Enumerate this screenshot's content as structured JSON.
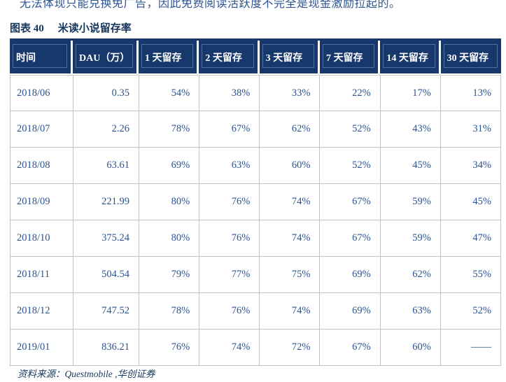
{
  "intro_text": "无法体现只能兑换免广告，因此免费阅读活跃度不完全是现金激励拉起的。",
  "figure": {
    "label": "图表 40",
    "title": "米读小说留存率"
  },
  "table": {
    "headers": [
      "时间",
      "DAU（万）",
      "1 天留存",
      "2 天留存",
      "3 天留存",
      "7 天留存",
      "14 天留存",
      "30 天留存"
    ],
    "rows": [
      [
        "2018/06",
        "0.35",
        "54%",
        "38%",
        "33%",
        "22%",
        "17%",
        "13%"
      ],
      [
        "2018/07",
        "2.26",
        "78%",
        "67%",
        "62%",
        "52%",
        "43%",
        "31%"
      ],
      [
        "2018/08",
        "63.61",
        "69%",
        "63%",
        "60%",
        "52%",
        "45%",
        "34%"
      ],
      [
        "2018/09",
        "221.99",
        "80%",
        "76%",
        "74%",
        "67%",
        "59%",
        "45%"
      ],
      [
        "2018/10",
        "375.24",
        "80%",
        "76%",
        "74%",
        "67%",
        "59%",
        "47%"
      ],
      [
        "2018/11",
        "504.54",
        "79%",
        "77%",
        "75%",
        "69%",
        "62%",
        "55%"
      ],
      [
        "2018/12",
        "747.52",
        "78%",
        "76%",
        "74%",
        "69%",
        "63%",
        "52%"
      ],
      [
        "2019/01",
        "836.21",
        "76%",
        "74%",
        "72%",
        "67%",
        "60%",
        "——"
      ]
    ]
  },
  "source": "资料来源：Questmobile ,华创证券",
  "colors": {
    "header_bg": "#17386b",
    "header_text": "#ffffff",
    "body_text": "#2b5491",
    "title_text": "#17375e",
    "grid_border": "#c3c3c3"
  }
}
